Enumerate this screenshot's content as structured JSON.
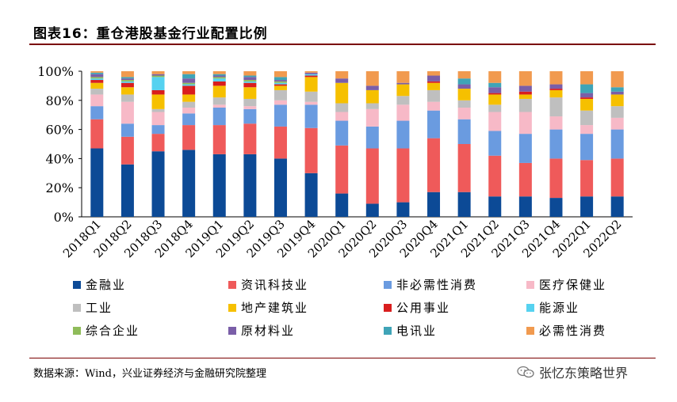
{
  "page": {
    "title": "图表16：重仓港股基金行业配置比例",
    "source": "数据来源：Wind，兴业证券经济与金融研究院整理",
    "watermark": "张忆东策略世界"
  },
  "chart_data": {
    "type": "stacked-bar",
    "title": "重仓港股基金行业配置比例",
    "ylim": [
      0,
      100
    ],
    "yticks": [
      "0%",
      "20%",
      "40%",
      "60%",
      "80%",
      "100%"
    ],
    "categories": [
      "2018Q1",
      "2018Q2",
      "2018Q3",
      "2018Q4",
      "2019Q1",
      "2019Q2",
      "2019Q3",
      "2019Q4",
      "2020Q1",
      "2020Q2",
      "2020Q3",
      "2020Q4",
      "2021Q1",
      "2021Q2",
      "2021Q3",
      "2021Q4",
      "2022Q1",
      "2022Q2"
    ],
    "series": [
      {
        "name": "金融业",
        "color": "#0c4a96",
        "values": [
          47,
          36,
          45,
          46,
          43,
          43,
          40,
          30,
          16,
          9,
          10,
          17,
          17,
          14,
          14,
          13,
          14,
          14
        ]
      },
      {
        "name": "资讯科技业",
        "color": "#ef5a5a",
        "values": [
          20,
          19,
          12,
          17,
          20,
          21,
          22,
          31,
          33,
          38,
          37,
          37,
          33,
          28,
          23,
          27,
          25,
          26
        ]
      },
      {
        "name": "非必需性消费",
        "color": "#6a9be0",
        "values": [
          9,
          9,
          6,
          8,
          12,
          10,
          15,
          16,
          17,
          15,
          19,
          19,
          17,
          17,
          20,
          20,
          18,
          20
        ]
      },
      {
        "name": "医疗保健业",
        "color": "#f7b9c7",
        "values": [
          8,
          15,
          9,
          4,
          2,
          2,
          3,
          2,
          6,
          12,
          11,
          6,
          8,
          13,
          15,
          9,
          6,
          8
        ]
      },
      {
        "name": "工业",
        "color": "#bfbfbf",
        "values": [
          4,
          5,
          2,
          4,
          5,
          5,
          7,
          7,
          6,
          4,
          6,
          8,
          5,
          5,
          9,
          13,
          10,
          8
        ]
      },
      {
        "name": "地产建筑业",
        "color": "#f6c000",
        "values": [
          4,
          5,
          10,
          5,
          8,
          8,
          3,
          10,
          14,
          9,
          8,
          5,
          8,
          7,
          3,
          5,
          8,
          8
        ]
      },
      {
        "name": "公用事业",
        "color": "#d91e1e",
        "values": [
          2,
          3,
          3,
          6,
          3,
          3,
          1,
          1,
          0,
          0,
          0,
          1,
          0,
          1,
          2,
          1,
          1,
          0
        ]
      },
      {
        "name": "能源业",
        "color": "#56d2f0",
        "values": [
          1,
          1,
          9,
          1,
          2,
          1,
          1,
          1,
          0,
          0,
          0,
          0,
          0,
          0,
          0,
          0,
          0,
          0
        ]
      },
      {
        "name": "综合企业",
        "color": "#8fbc5a",
        "values": [
          1,
          1,
          1,
          1,
          1,
          1,
          1,
          0,
          0,
          0,
          0,
          0,
          0,
          0,
          0,
          0,
          0,
          0
        ]
      },
      {
        "name": "原材料业",
        "color": "#7a5ea8",
        "values": [
          2,
          1,
          1,
          3,
          1,
          2,
          1,
          1,
          3,
          3,
          1,
          4,
          3,
          4,
          4,
          3,
          3,
          2
        ]
      },
      {
        "name": "电讯业",
        "color": "#3fa4b7",
        "values": [
          1,
          1,
          0,
          3,
          1,
          1,
          2,
          0,
          0,
          0,
          0,
          0,
          4,
          3,
          0,
          0,
          6,
          3
        ]
      },
      {
        "name": "必需性消费",
        "color": "#f19a4f",
        "values": [
          1,
          4,
          2,
          2,
          2,
          3,
          4,
          1,
          5,
          10,
          8,
          3,
          5,
          8,
          10,
          9,
          9,
          11
        ]
      }
    ]
  }
}
